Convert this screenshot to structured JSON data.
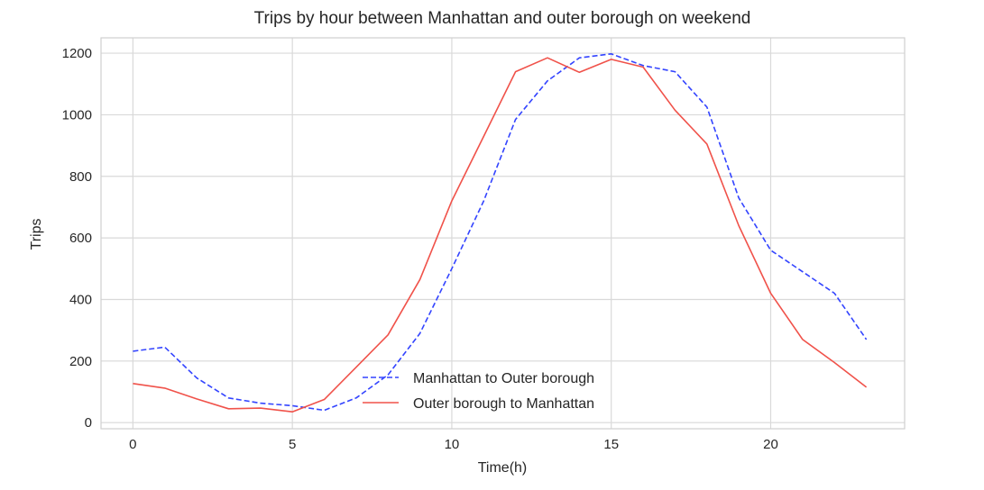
{
  "chart_data": {
    "type": "line",
    "title": "Trips by hour between Manhattan and outer borough on weekend",
    "xlabel": "Time(h)",
    "ylabel": "Trips",
    "xlim": [
      -1,
      24.2
    ],
    "ylim": [
      -20,
      1250
    ],
    "xticks": [
      0,
      5,
      10,
      15,
      20
    ],
    "yticks": [
      0,
      200,
      400,
      600,
      800,
      1000,
      1200
    ],
    "grid": true,
    "legend_position": "lower center",
    "x": [
      0,
      1,
      2,
      3,
      4,
      5,
      6,
      7,
      8,
      9,
      10,
      11,
      12,
      13,
      14,
      15,
      16,
      17,
      18,
      19,
      20,
      21,
      22,
      23
    ],
    "series": [
      {
        "name": "Manhattan to  Outer borough",
        "color": "#3344ff",
        "style": "dashed",
        "values": [
          232,
          245,
          145,
          80,
          63,
          55,
          40,
          80,
          155,
          290,
          500,
          720,
          985,
          1110,
          1185,
          1198,
          1160,
          1140,
          1025,
          730,
          560,
          490,
          420,
          270
        ]
      },
      {
        "name": "Outer borough to Manhattan",
        "color": "#f0524a",
        "style": "solid",
        "values": [
          127,
          112,
          77,
          45,
          47,
          35,
          75,
          180,
          285,
          465,
          720,
          930,
          1140,
          1185,
          1138,
          1180,
          1155,
          1015,
          905,
          640,
          420,
          270,
          195,
          115
        ]
      }
    ]
  }
}
